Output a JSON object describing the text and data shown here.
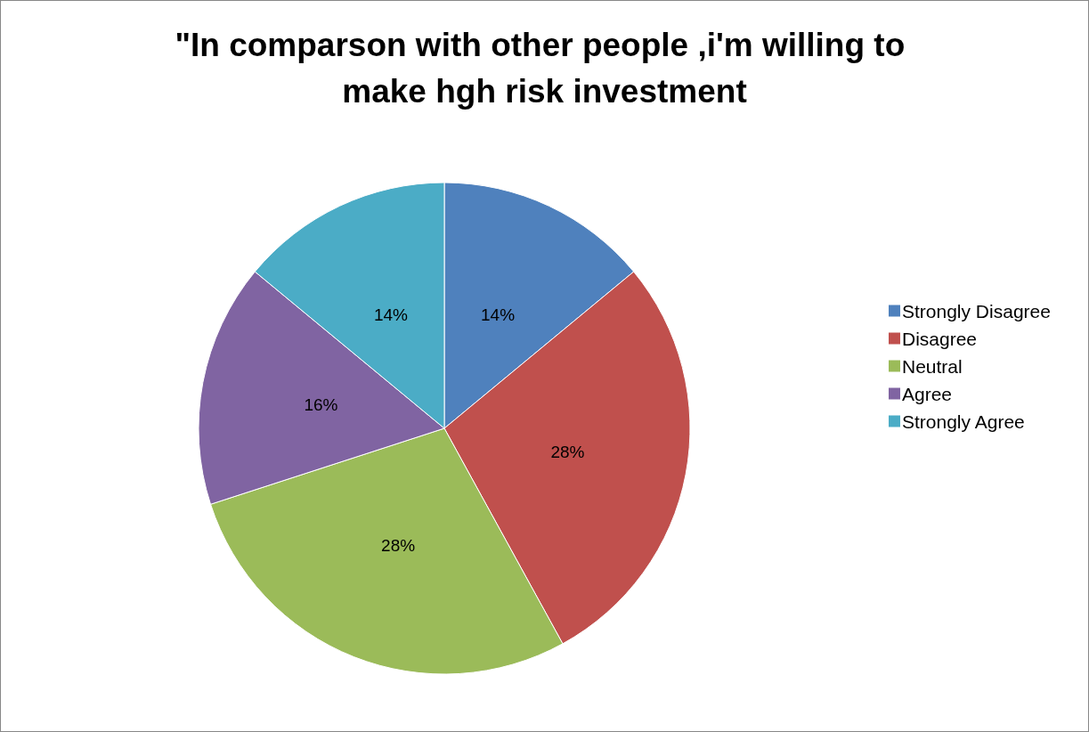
{
  "chart_data": {
    "type": "pie",
    "title": "\"In comparson with other people ,i'm willing to make hgh risk investment",
    "categories": [
      "Strongly Disagree",
      "Disagree",
      "Neutral",
      "Agree",
      "Strongly Agree"
    ],
    "values": [
      14,
      28,
      28,
      16,
      14
    ],
    "colors": [
      "#4f81bd",
      "#c0504d",
      "#9bbb59",
      "#8064a2",
      "#4bacc6"
    ],
    "value_labels": [
      "14%",
      "28%",
      "28%",
      "16%",
      "14%"
    ],
    "legend": "right"
  }
}
